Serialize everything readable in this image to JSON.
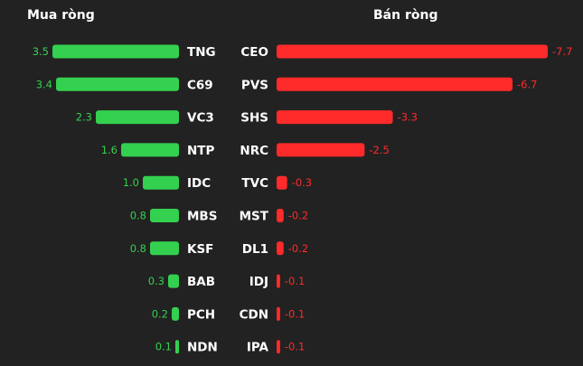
{
  "chart_data": [
    {
      "type": "bar",
      "orientation": "horizontal",
      "title": "Mua ròng",
      "color": "#33d14f",
      "categories": [
        "TNG",
        "C69",
        "VC3",
        "NTP",
        "IDC",
        "MBS",
        "KSF",
        "BAB",
        "PCH",
        "NDN"
      ],
      "values": [
        3.5,
        3.4,
        2.3,
        1.6,
        1.0,
        0.8,
        0.8,
        0.3,
        0.2,
        0.1
      ],
      "labels": [
        "3.5",
        "3.4",
        "2.3",
        "1.6",
        "1.0",
        "0.8",
        "0.8",
        "0.3",
        "0.2",
        "0.1"
      ]
    },
    {
      "type": "bar",
      "orientation": "horizontal",
      "title": "Bán ròng",
      "color": "#ff2a2a",
      "categories": [
        "CEO",
        "PVS",
        "SHS",
        "NRC",
        "TVC",
        "MST",
        "DL1",
        "IDJ",
        "CDN",
        "IPA"
      ],
      "values": [
        -7.7,
        -6.7,
        -3.3,
        -2.5,
        -0.3,
        -0.2,
        -0.2,
        -0.1,
        -0.1,
        -0.1
      ],
      "labels": [
        "-7.7",
        "-6.7",
        "-3.3",
        "-2.5",
        "-0.3",
        "-0.2",
        "-0.2",
        "-0.1",
        "-0.1",
        "-0.1"
      ]
    }
  ]
}
